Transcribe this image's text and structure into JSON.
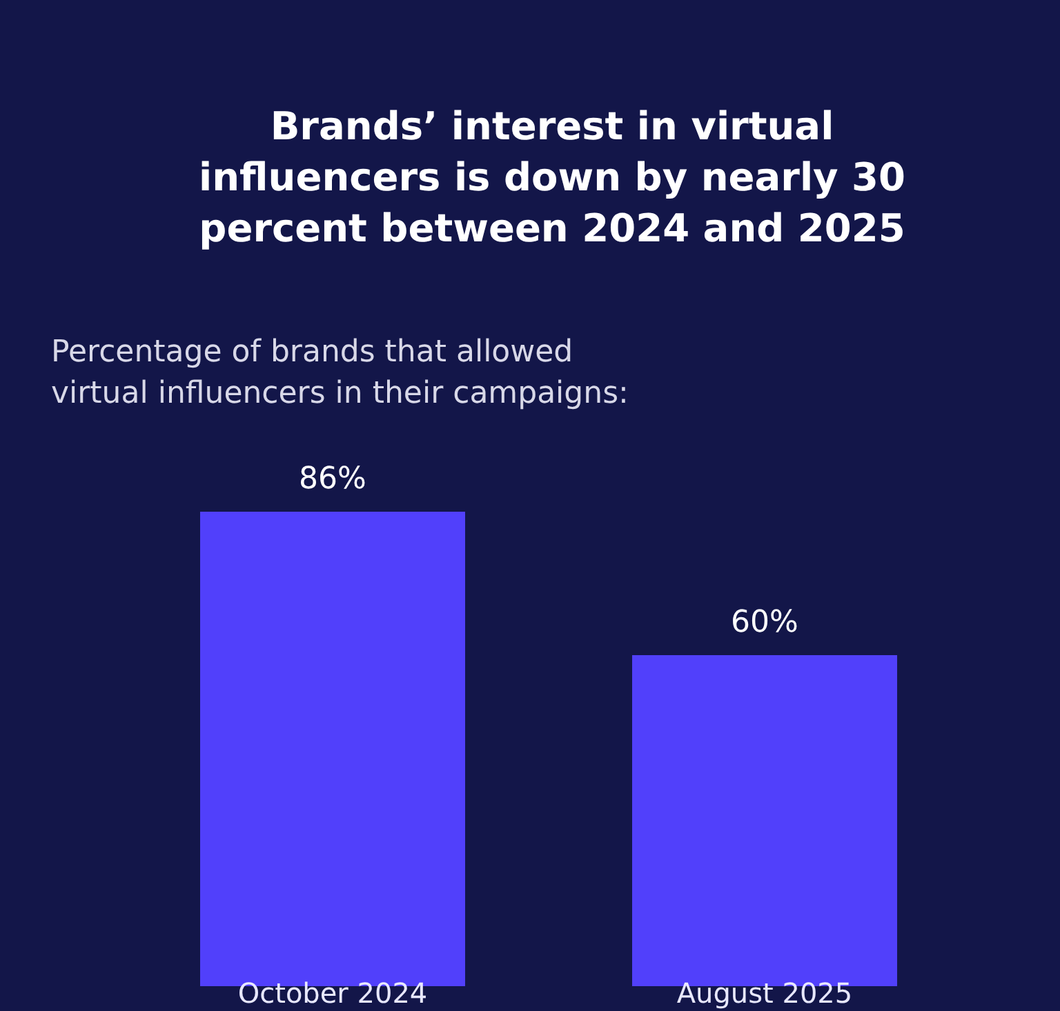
{
  "chart_data": {
    "type": "bar",
    "title": "Brands’ interest in virtual influencers is down by nearly 30 percent between 2024 and 2025",
    "subtitle": "Percentage of brands that allowed virtual influencers in their campaigns:",
    "categories": [
      "October 2024",
      "August 2025"
    ],
    "values": [
      86,
      60
    ],
    "color": "#5140fb",
    "data_labels": true,
    "value_labels": [
      "86%",
      "60%"
    ]
  }
}
